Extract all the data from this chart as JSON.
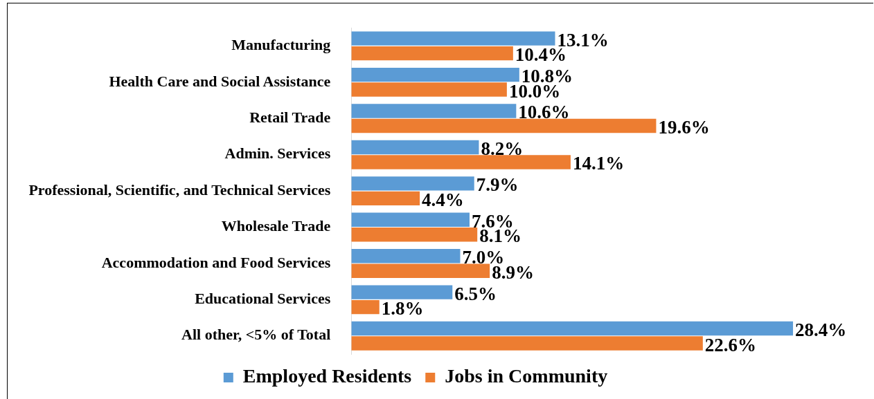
{
  "chart_data": {
    "type": "bar",
    "orientation": "horizontal",
    "categories": [
      "Manufacturing",
      "Health Care and Social Assistance",
      "Retail Trade",
      "Admin. Services",
      "Professional, Scientific, and Technical Services",
      "Wholesale Trade",
      "Accommodation and Food Services",
      "Educational Services",
      "All other, <5% of Total"
    ],
    "series": [
      {
        "name": "Employed Residents",
        "color": "#5b9bd5",
        "values": [
          13.1,
          10.8,
          10.6,
          8.2,
          7.9,
          7.6,
          7.0,
          6.5,
          28.4
        ],
        "value_labels": [
          "13.1%",
          "10.8%",
          "10.6%",
          "8.2%",
          "7.9%",
          "7.6%",
          "7.0%",
          "6.5%",
          "28.4%"
        ]
      },
      {
        "name": "Jobs in Community",
        "color": "#ed7d31",
        "values": [
          10.4,
          10.0,
          19.6,
          14.1,
          4.4,
          8.1,
          8.9,
          1.8,
          22.6
        ],
        "value_labels": [
          "10.4%",
          "10.0%",
          "19.6%",
          "14.1%",
          "4.4%",
          "8.1%",
          "8.9%",
          "1.8%",
          "22.6%"
        ]
      }
    ],
    "legend": "bottom",
    "tick_labels": "y"
  }
}
